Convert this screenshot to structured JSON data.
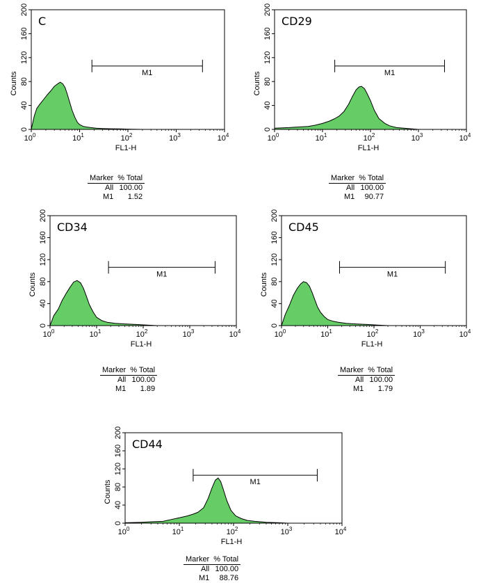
{
  "chart_data": [
    {
      "type": "histogram",
      "title": "C",
      "xlabel": "FL1-H",
      "ylabel": "Counts",
      "x_scale": "log",
      "xlim": [
        1,
        10000
      ],
      "ylim": [
        0,
        200
      ],
      "yticks": [
        "0",
        "40",
        "80",
        "120",
        "160",
        "200"
      ],
      "marker": {
        "label": "M1",
        "range": [
          18,
          3500
        ]
      },
      "histogram": {
        "x": [
          1,
          1.15,
          1.3,
          1.5,
          1.8,
          2.1,
          2.5,
          3,
          3.5,
          4,
          4.5,
          5,
          5.5,
          6.2,
          7,
          8,
          9,
          10,
          12,
          14,
          17,
          22,
          30,
          45,
          70,
          100,
          200,
          10000
        ],
        "y": [
          0,
          22,
          35,
          42,
          50,
          57,
          64,
          72,
          76,
          79,
          76,
          70,
          60,
          46,
          32,
          20,
          12,
          8,
          5,
          4,
          3,
          2,
          1.5,
          1,
          0.8,
          0.5,
          0,
          0
        ]
      },
      "stats": {
        "headers": [
          "Marker",
          "% Total"
        ],
        "rows": [
          [
            "All",
            "100.00"
          ],
          [
            "M1",
            "1.52"
          ]
        ]
      }
    },
    {
      "type": "histogram",
      "title": "CD29",
      "xlabel": "FL1-H",
      "ylabel": "Counts",
      "x_scale": "log",
      "xlim": [
        1,
        10000
      ],
      "ylim": [
        0,
        200
      ],
      "yticks": [
        "0",
        "40",
        "80",
        "120",
        "160",
        "200"
      ],
      "marker": {
        "label": "M1",
        "range": [
          18,
          3500
        ]
      },
      "histogram": {
        "x": [
          1,
          2,
          3,
          5,
          7,
          10,
          14,
          18,
          22,
          28,
          35,
          42,
          50,
          58,
          65,
          75,
          85,
          100,
          120,
          150,
          200,
          250,
          350,
          500,
          700,
          1000,
          10000
        ],
        "y": [
          2,
          3,
          4,
          5,
          7,
          10,
          14,
          18,
          22,
          30,
          42,
          55,
          66,
          71,
          72,
          68,
          60,
          48,
          32,
          18,
          10,
          6,
          3,
          2,
          1,
          0,
          0
        ]
      },
      "stats": {
        "headers": [
          "Marker",
          "% Total"
        ],
        "rows": [
          [
            "All",
            "100.00"
          ],
          [
            "M1",
            "90.77"
          ]
        ]
      }
    },
    {
      "type": "histogram",
      "title": "CD34",
      "xlabel": "FL1-H",
      "ylabel": "Counts",
      "x_scale": "log",
      "xlim": [
        1,
        10000
      ],
      "ylim": [
        0,
        200
      ],
      "yticks": [
        "0",
        "40",
        "80",
        "120",
        "160",
        "200"
      ],
      "marker": {
        "label": "M1",
        "range": [
          18,
          3500
        ]
      },
      "histogram": {
        "x": [
          1,
          1.2,
          1.5,
          1.8,
          2.2,
          2.7,
          3.2,
          3.8,
          4.5,
          5.2,
          6,
          7,
          8.5,
          10,
          13,
          17,
          25,
          40,
          70,
          120,
          200,
          10000
        ],
        "y": [
          0,
          18,
          30,
          45,
          58,
          70,
          79,
          82,
          78,
          68,
          54,
          38,
          24,
          15,
          9,
          6,
          4,
          3,
          2,
          1,
          0,
          0
        ]
      },
      "stats": {
        "headers": [
          "Marker",
          "% Total"
        ],
        "rows": [
          [
            "All",
            "100.00"
          ],
          [
            "M1",
            "1.89"
          ]
        ]
      }
    },
    {
      "type": "histogram",
      "title": "CD45",
      "xlabel": "FL1-H",
      "ylabel": "Counts",
      "x_scale": "log",
      "xlim": [
        1,
        10000
      ],
      "ylim": [
        0,
        200
      ],
      "yticks": [
        "0",
        "40",
        "80",
        "120",
        "160",
        "200"
      ],
      "marker": {
        "label": "M1",
        "range": [
          18,
          3500
        ]
      },
      "histogram": {
        "x": [
          1,
          1.2,
          1.5,
          1.8,
          2.2,
          2.6,
          3,
          3.5,
          4,
          4.6,
          5.3,
          6,
          7,
          8.5,
          10,
          13,
          17,
          25,
          40,
          70,
          120,
          200,
          10000
        ],
        "y": [
          0,
          20,
          38,
          55,
          68,
          76,
          80,
          78,
          72,
          60,
          46,
          34,
          24,
          16,
          11,
          8,
          6,
          4,
          3,
          2,
          1,
          0,
          0
        ]
      },
      "stats": {
        "headers": [
          "Marker",
          "% Total"
        ],
        "rows": [
          [
            "All",
            "100.00"
          ],
          [
            "M1",
            "1.79"
          ]
        ]
      }
    },
    {
      "type": "histogram",
      "title": "CD44",
      "xlabel": "FL1-H",
      "ylabel": "Counts",
      "x_scale": "log",
      "xlim": [
        1,
        10000
      ],
      "ylim": [
        0,
        200
      ],
      "yticks": [
        "0",
        "40",
        "80",
        "120",
        "160",
        "200"
      ],
      "marker": {
        "label": "M1",
        "range": [
          18,
          3500
        ]
      },
      "histogram": {
        "x": [
          1,
          2,
          3,
          5,
          7,
          10,
          14,
          18,
          22,
          28,
          34,
          40,
          46,
          52,
          58,
          65,
          75,
          90,
          110,
          140,
          180,
          250,
          400,
          700,
          1000,
          10000
        ],
        "y": [
          1,
          2,
          3,
          4,
          8,
          12,
          16,
          20,
          24,
          34,
          55,
          78,
          95,
          100,
          92,
          74,
          50,
          28,
          16,
          10,
          6,
          4,
          2,
          1,
          0,
          0
        ]
      },
      "stats": {
        "headers": [
          "Marker",
          "% Total"
        ],
        "rows": [
          [
            "All",
            "100.00"
          ],
          [
            "M1",
            "88.76"
          ]
        ]
      }
    }
  ]
}
